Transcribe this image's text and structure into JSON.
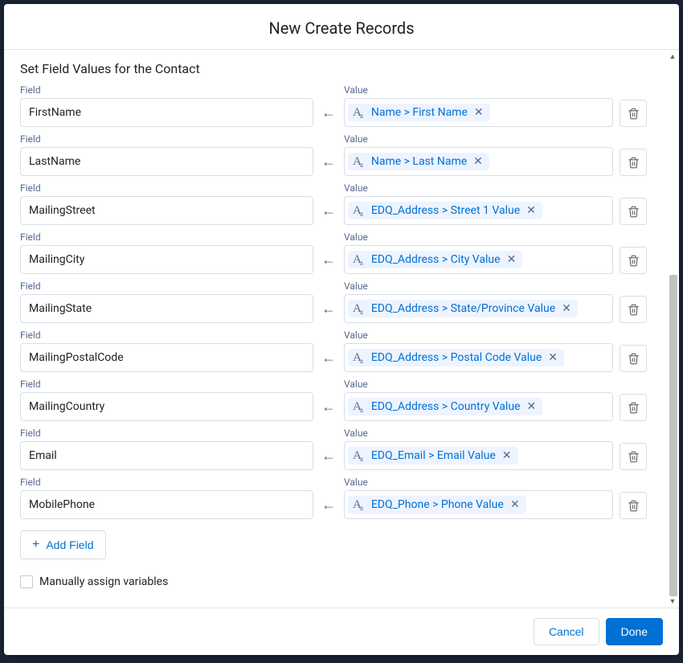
{
  "modal": {
    "title": "New Create Records"
  },
  "section": {
    "title": "Set Field Values for the Contact"
  },
  "labels": {
    "field": "Field",
    "value": "Value"
  },
  "rows": [
    {
      "field": "FirstName",
      "value": "Name > First Name"
    },
    {
      "field": "LastName",
      "value": "Name > Last Name"
    },
    {
      "field": "MailingStreet",
      "value": "EDQ_Address > Street 1 Value"
    },
    {
      "field": "MailingCity",
      "value": "EDQ_Address > City Value"
    },
    {
      "field": "MailingState",
      "value": "EDQ_Address > State/Province Value"
    },
    {
      "field": "MailingPostalCode",
      "value": "EDQ_Address > Postal Code Value"
    },
    {
      "field": "MailingCountry",
      "value": "EDQ_Address > Country Value"
    },
    {
      "field": "Email",
      "value": "EDQ_Email > Email Value"
    },
    {
      "field": "MobilePhone",
      "value": "EDQ_Phone > Phone Value"
    }
  ],
  "addField": "Add Field",
  "checkbox": {
    "label": "Manually assign variables",
    "checked": false
  },
  "footer": {
    "cancel": "Cancel",
    "done": "Done"
  },
  "colors": {
    "link": "#0070d2",
    "label": "#54698d",
    "border": "#d8dde6"
  }
}
